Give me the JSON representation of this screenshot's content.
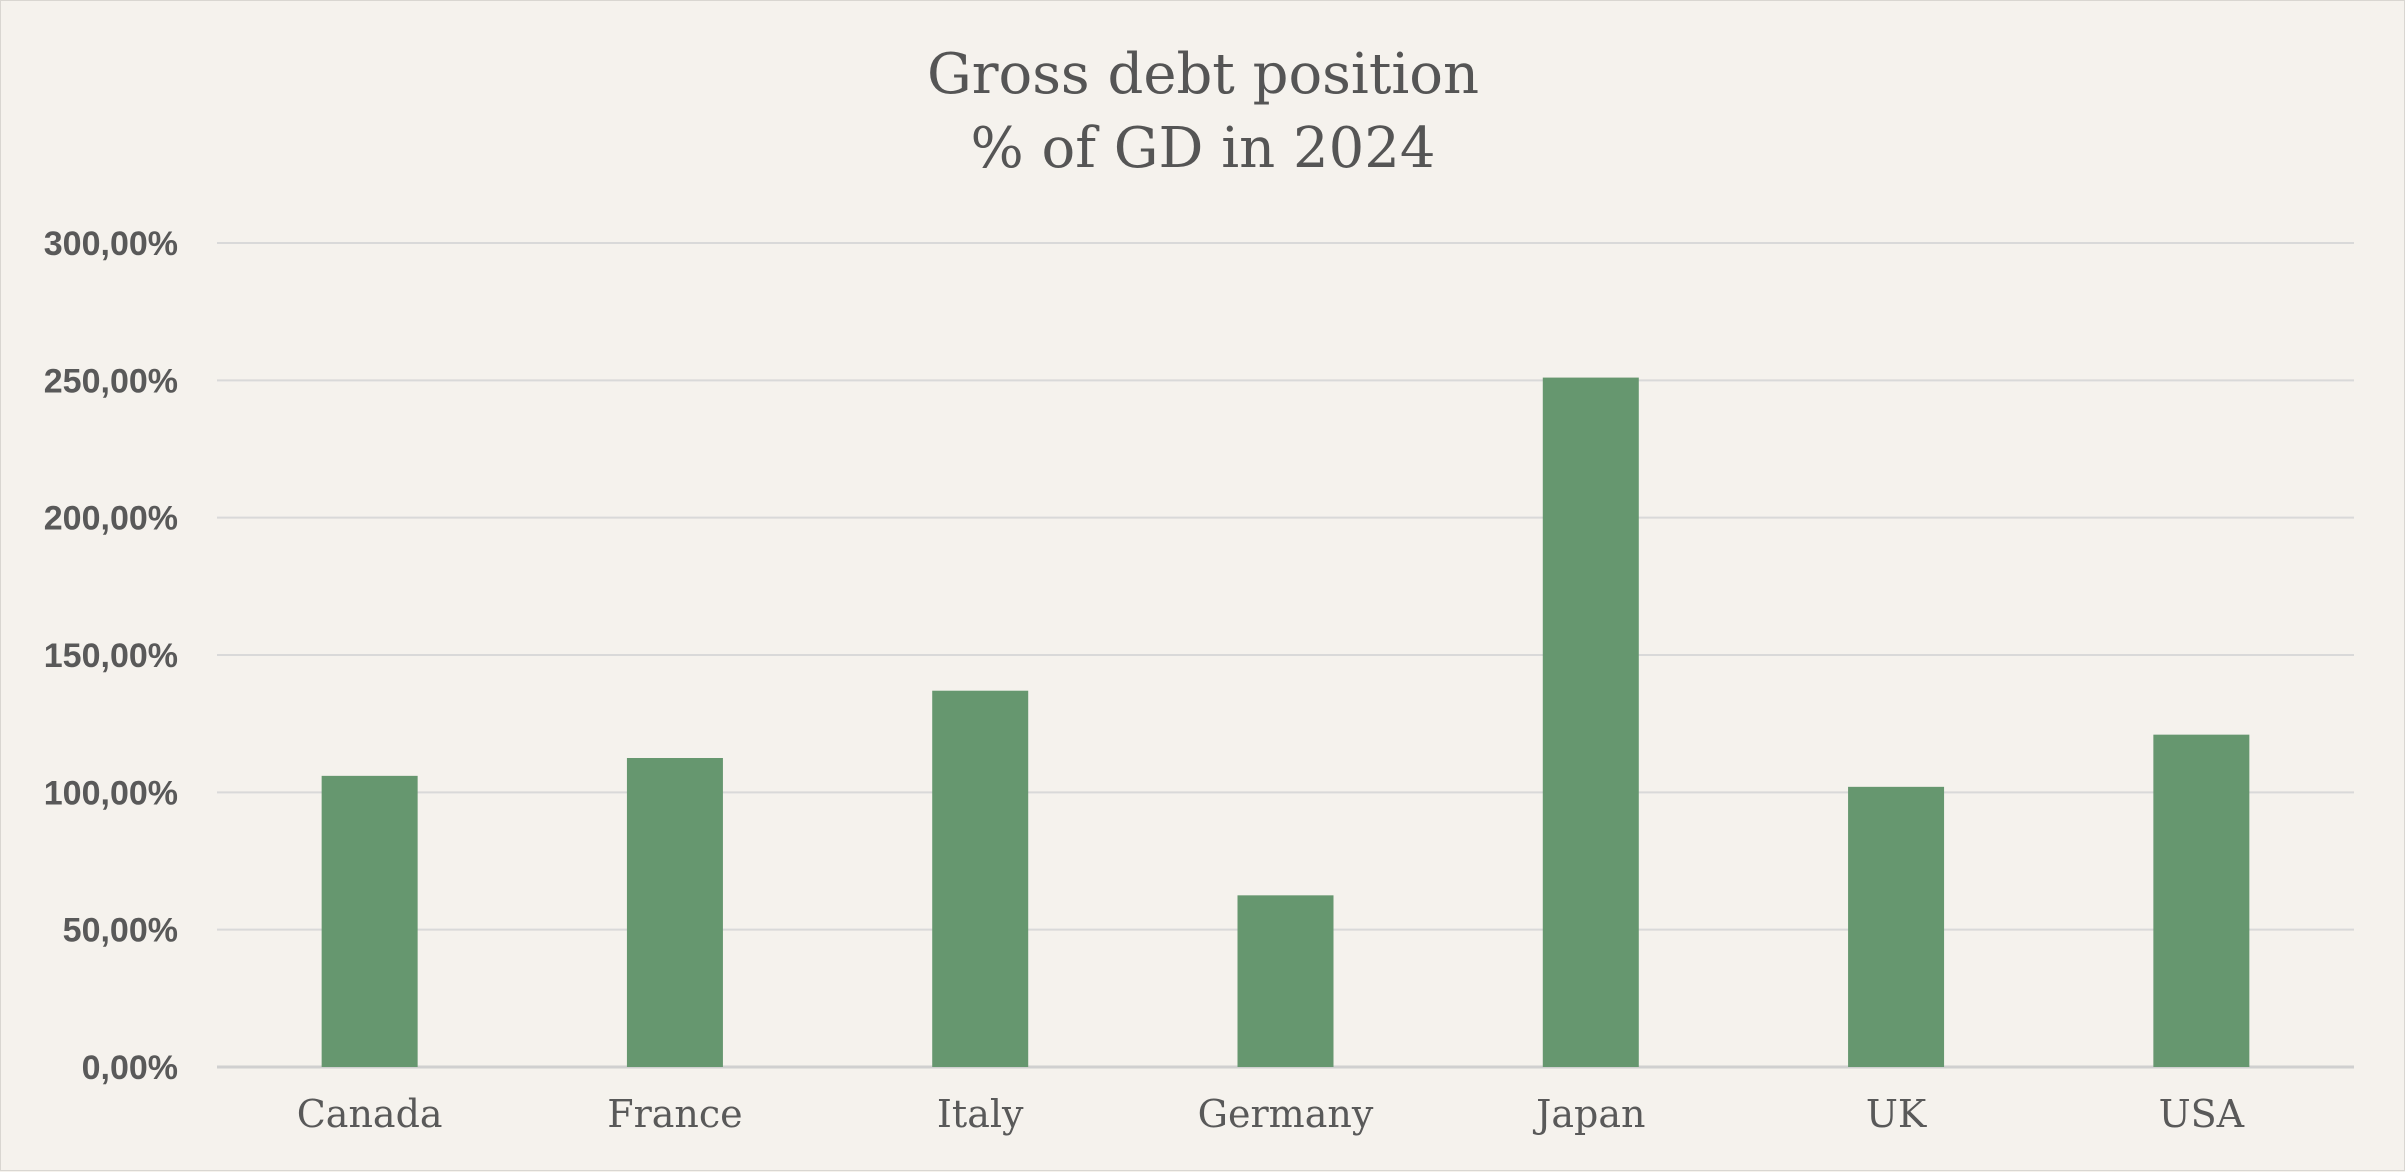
{
  "chart_data": {
    "type": "bar",
    "title_lines": [
      "Gross debt position",
      "% of GD in 2024"
    ],
    "categories": [
      "Canada",
      "France",
      "Italy",
      "Germany",
      "Japan",
      "UK",
      "USA"
    ],
    "values": [
      106.0,
      112.5,
      137.0,
      62.5,
      251.0,
      102.0,
      121.0
    ],
    "ylim": [
      0,
      300
    ],
    "yticks": [
      0,
      50,
      100,
      150,
      200,
      250,
      300
    ],
    "ytick_labels": [
      "0,00%",
      "50,00%",
      "100,00%",
      "150,00%",
      "200,00%",
      "250,00%",
      "300,00%"
    ],
    "xlabel": "",
    "ylabel": "",
    "grid": true,
    "legend": "none",
    "bar_color": "#66976f",
    "background_color": "#f5f2ed",
    "text_color": "#595959"
  }
}
